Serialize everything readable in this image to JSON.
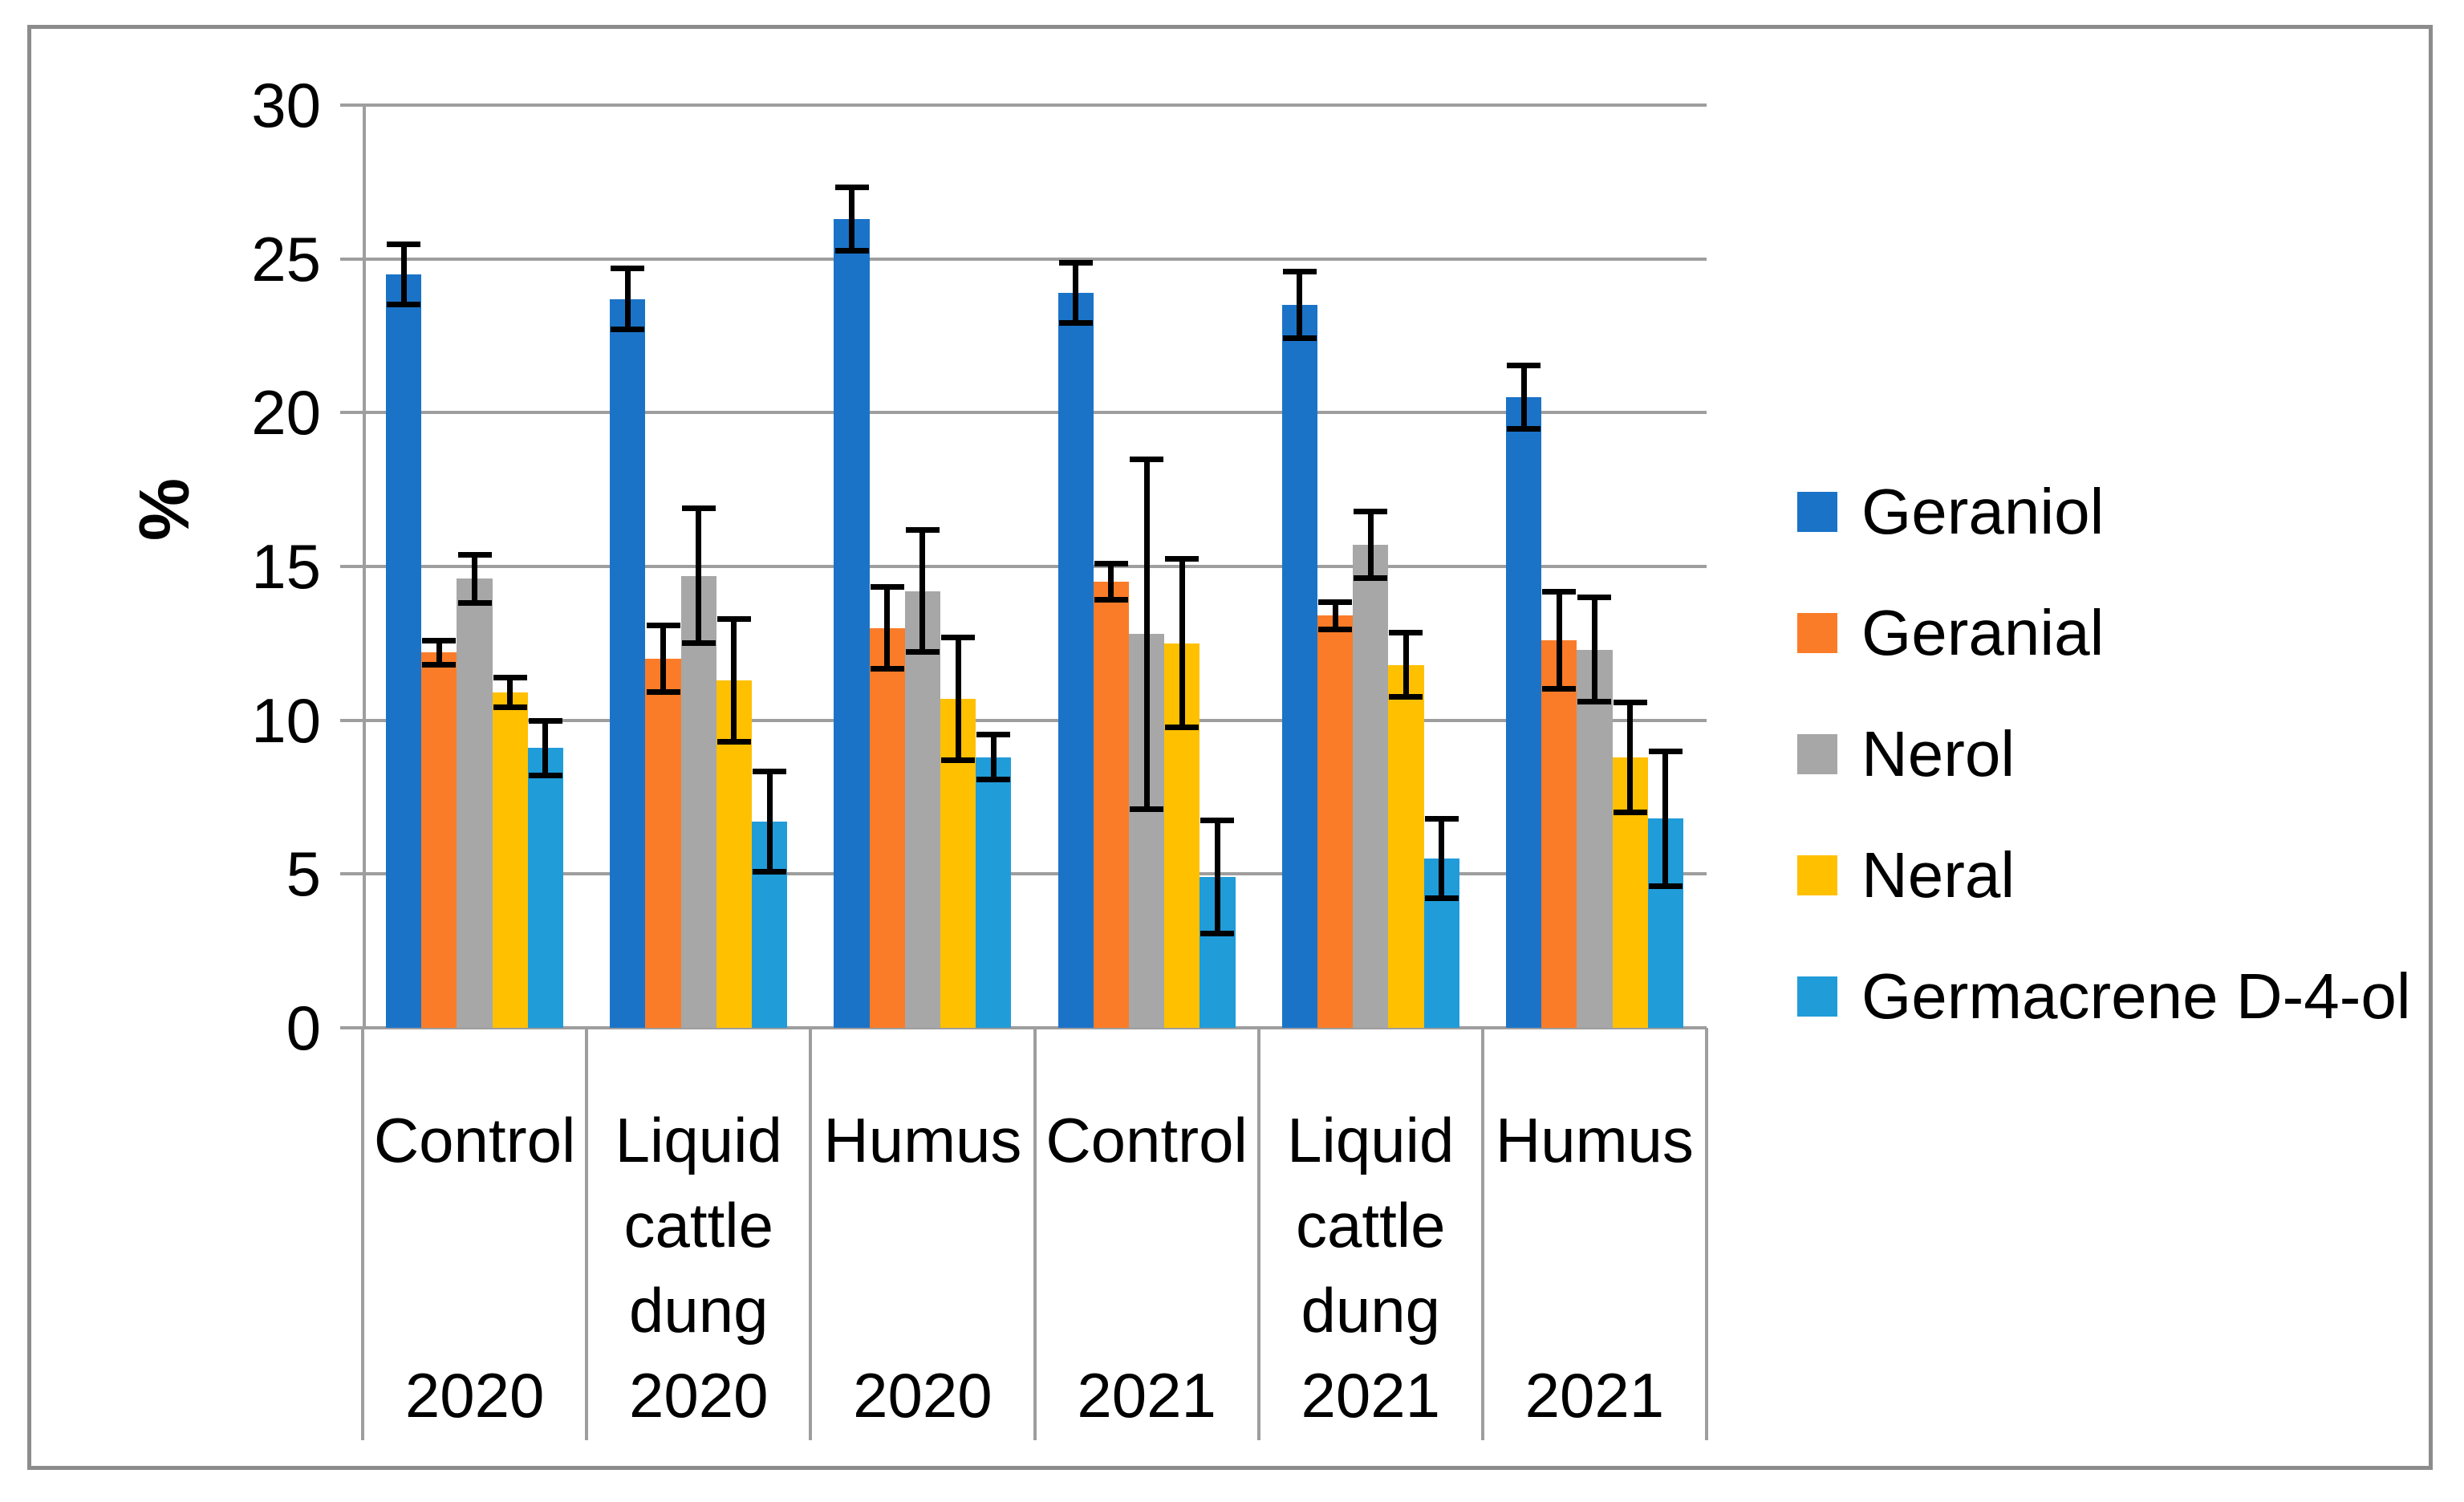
{
  "figure": {
    "ylabel": "%"
  },
  "chart_data": {
    "type": "bar",
    "title": "",
    "xlabel": "",
    "ylabel": "%",
    "ylim": [
      0,
      30
    ],
    "ytick_step": 5,
    "ytick_labels": [
      "0",
      "5",
      "10",
      "15",
      "20",
      "25",
      "30"
    ],
    "grid": true,
    "legend_position": "right",
    "error_bars": true,
    "groups": [
      {
        "treatment": "Control",
        "year": "2020"
      },
      {
        "treatment": "Liquid cattle dung",
        "year": "2020"
      },
      {
        "treatment": "Humus",
        "year": "2020"
      },
      {
        "treatment": "Control",
        "year": "2021"
      },
      {
        "treatment": "Liquid cattle dung",
        "year": "2021"
      },
      {
        "treatment": "Humus",
        "year": "2021"
      }
    ],
    "series": [
      {
        "name": "Geraniol",
        "color": "#1B73C8",
        "values": [
          24.5,
          23.7,
          26.3,
          23.9,
          23.5,
          20.5
        ],
        "errors": [
          1.0,
          1.0,
          1.05,
          1.0,
          1.1,
          1.05
        ]
      },
      {
        "name": "Geranial",
        "color": "#FB7C28",
        "values": [
          12.2,
          12.0,
          13.0,
          14.5,
          13.4,
          12.6
        ],
        "errors": [
          0.4,
          1.1,
          1.35,
          0.6,
          0.45,
          1.6
        ]
      },
      {
        "name": "Nerol",
        "color": "#A7A7A7",
        "values": [
          14.6,
          14.7,
          14.2,
          12.8,
          15.7,
          12.3
        ],
        "errors": [
          0.8,
          2.2,
          2.0,
          5.7,
          1.1,
          1.7
        ]
      },
      {
        "name": "Neral",
        "color": "#FFC000",
        "values": [
          10.9,
          11.3,
          10.7,
          12.5,
          11.8,
          8.8
        ],
        "errors": [
          0.5,
          2.0,
          2.0,
          2.75,
          1.05,
          1.8
        ]
      },
      {
        "name": "Germacrene D-4-ol",
        "color": "#209CD9",
        "values": [
          9.1,
          6.7,
          8.8,
          4.9,
          5.5,
          6.8
        ],
        "errors": [
          0.9,
          1.65,
          0.75,
          1.85,
          1.3,
          2.2
        ]
      }
    ]
  }
}
